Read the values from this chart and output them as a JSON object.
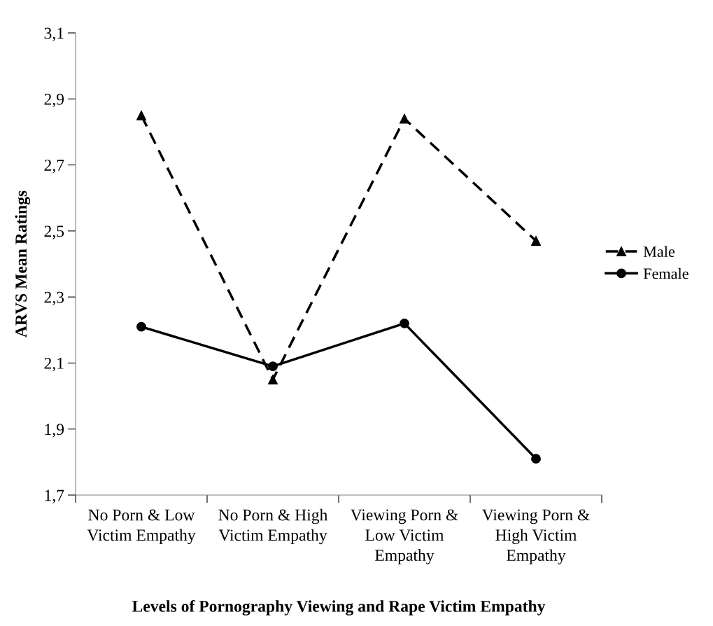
{
  "chart_data": {
    "type": "line",
    "xlabel": "Levels of Pornography Viewing and Rape Victim Empathy",
    "ylabel": "ARVS Mean Ratings",
    "categories": [
      "No Porn & Low\nVictim Empathy",
      "No Porn & High\nVictim Empathy",
      "Viewing Porn &\nLow Victim\nEmpathy",
      "Viewing Porn &\nHigh Victim\nEmpathy"
    ],
    "series": [
      {
        "name": "Male",
        "color": "#000000",
        "marker": "triangle",
        "line_style": "dashed",
        "values": [
          2.85,
          2.05,
          2.84,
          2.47
        ]
      },
      {
        "name": "Female",
        "color": "#000000",
        "marker": "circle",
        "line_style": "solid",
        "values": [
          2.21,
          2.09,
          2.22,
          1.81
        ]
      }
    ],
    "ylim": [
      1.7,
      3.1
    ],
    "yticks": [
      {
        "value": 1.7,
        "label": "1,7"
      },
      {
        "value": 1.9,
        "label": "1,9"
      },
      {
        "value": 2.1,
        "label": "2,1"
      },
      {
        "value": 2.3,
        "label": "2,3"
      },
      {
        "value": 2.5,
        "label": "2,5"
      },
      {
        "value": 2.7,
        "label": "2,7"
      },
      {
        "value": 2.9,
        "label": "2,9"
      },
      {
        "value": 3.1,
        "label": "3,1"
      }
    ],
    "grid": false,
    "legend": "right"
  }
}
